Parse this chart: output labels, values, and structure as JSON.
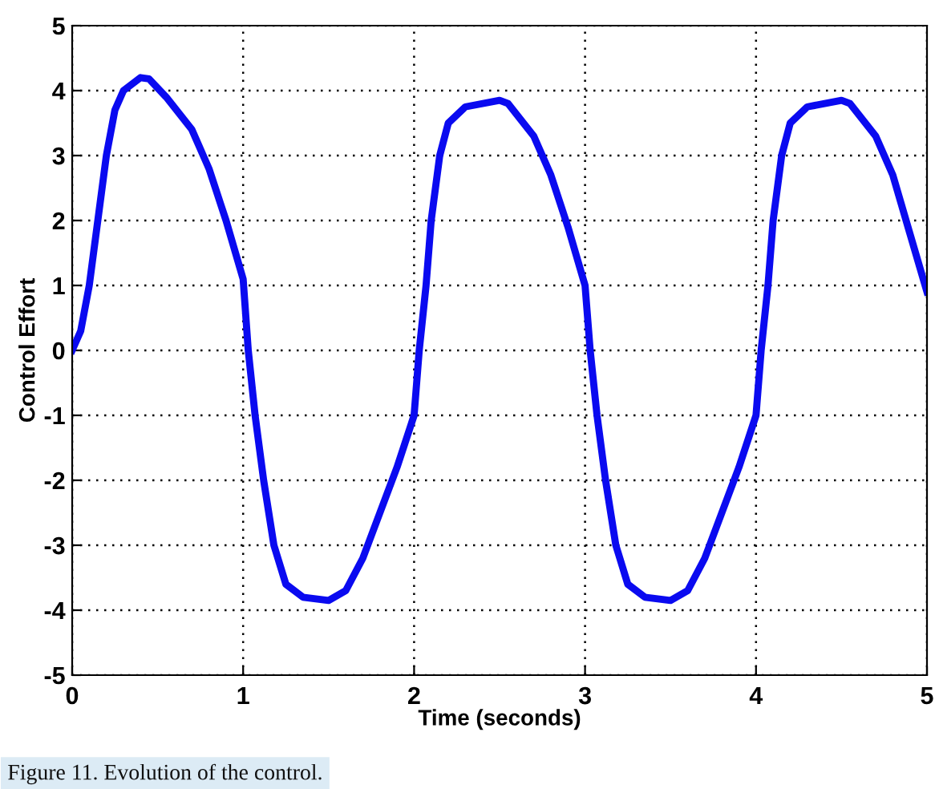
{
  "chart_data": {
    "type": "line",
    "xlabel": "Time (seconds)",
    "ylabel": "Control Effort",
    "annotations": [
      "Figure 11. Evolution of the control."
    ],
    "x": [
      0,
      0.05,
      0.1,
      0.15,
      0.2,
      0.25,
      0.3,
      0.4,
      0.45,
      0.55,
      0.7,
      0.8,
      0.9,
      1.0,
      1.03,
      1.07,
      1.12,
      1.18,
      1.25,
      1.35,
      1.5,
      1.6,
      1.7,
      1.8,
      1.9,
      2.0,
      2.03,
      2.07,
      2.1,
      2.15,
      2.2,
      2.3,
      2.5,
      2.55,
      2.7,
      2.8,
      2.9,
      3.0,
      3.03,
      3.07,
      3.12,
      3.18,
      3.25,
      3.35,
      3.5,
      3.6,
      3.7,
      3.8,
      3.9,
      4.0,
      4.03,
      4.07,
      4.1,
      4.15,
      4.2,
      4.3,
      4.5,
      4.55,
      4.7,
      4.8,
      4.9,
      5.0
    ],
    "series": [
      {
        "color": "#0a0af0",
        "values": [
          0,
          0.3,
          1,
          2,
          3,
          3.7,
          4.0,
          4.2,
          4.18,
          3.9,
          3.4,
          2.8,
          2.0,
          1.1,
          0,
          -1,
          -2,
          -3,
          -3.6,
          -3.8,
          -3.85,
          -3.7,
          -3.2,
          -2.5,
          -1.8,
          -1.0,
          0,
          1,
          2,
          3,
          3.5,
          3.75,
          3.85,
          3.8,
          3.3,
          2.7,
          1.9,
          1.0,
          0,
          -1,
          -2,
          -3,
          -3.6,
          -3.8,
          -3.85,
          -3.7,
          -3.2,
          -2.5,
          -1.8,
          -1.0,
          0,
          1,
          2,
          3,
          3.5,
          3.75,
          3.85,
          3.8,
          3.3,
          2.7,
          1.8,
          0.9
        ]
      }
    ],
    "xlim": [
      0,
      5
    ],
    "ylim": [
      -5,
      5
    ],
    "xticks": [
      0,
      1,
      2,
      3,
      4,
      5
    ],
    "yticks": [
      -5,
      -4,
      -3,
      -2,
      -1,
      0,
      1,
      2,
      3,
      4,
      5
    ],
    "grid": true,
    "line_style": "solid",
    "marker": "none"
  }
}
